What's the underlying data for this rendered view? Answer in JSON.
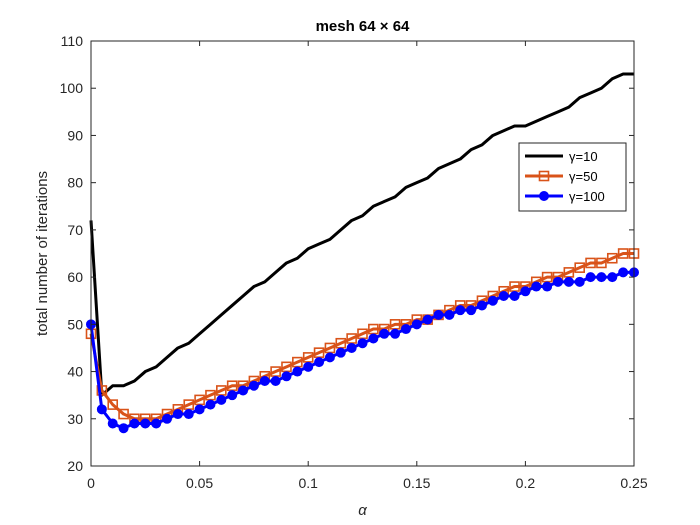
{
  "chart_data": {
    "type": "line",
    "title": "mesh 64 × 64",
    "xlabel": "α",
    "ylabel": "total number of iterations",
    "xlim": [
      0,
      0.25
    ],
    "ylim": [
      20,
      110
    ],
    "xticks": [
      0,
      0.05,
      0.1,
      0.15,
      0.2,
      0.25
    ],
    "xtick_labels": [
      "0",
      "0.05",
      "0.1",
      "0.15",
      "0.2",
      "0.25"
    ],
    "yticks": [
      20,
      30,
      40,
      50,
      60,
      70,
      80,
      90,
      100,
      110
    ],
    "ytick_labels": [
      "20",
      "30",
      "40",
      "50",
      "60",
      "70",
      "80",
      "90",
      "100",
      "110"
    ],
    "grid": false,
    "legend_position": "upper-right",
    "series": [
      {
        "name": "γ=10",
        "color": "#000000",
        "marker": "none",
        "x": [
          0,
          0.005,
          0.01,
          0.015,
          0.02,
          0.025,
          0.03,
          0.035,
          0.04,
          0.045,
          0.05,
          0.055,
          0.06,
          0.065,
          0.07,
          0.075,
          0.08,
          0.085,
          0.09,
          0.095,
          0.1,
          0.105,
          0.11,
          0.115,
          0.12,
          0.125,
          0.13,
          0.135,
          0.14,
          0.145,
          0.15,
          0.155,
          0.16,
          0.165,
          0.17,
          0.175,
          0.18,
          0.185,
          0.19,
          0.195,
          0.2,
          0.205,
          0.21,
          0.215,
          0.22,
          0.225,
          0.23,
          0.235,
          0.24,
          0.245,
          0.25
        ],
        "y": [
          72,
          35,
          37,
          37,
          38,
          40,
          41,
          43,
          45,
          46,
          48,
          50,
          52,
          54,
          56,
          58,
          59,
          61,
          63,
          64,
          66,
          67,
          68,
          70,
          72,
          73,
          75,
          76,
          77,
          79,
          80,
          81,
          83,
          84,
          85,
          87,
          88,
          90,
          91,
          92,
          92,
          93,
          94,
          95,
          96,
          98,
          99,
          100,
          102,
          103,
          103
        ]
      },
      {
        "name": "γ=50",
        "color": "#D95319",
        "marker": "square",
        "x": [
          0,
          0.005,
          0.01,
          0.015,
          0.02,
          0.025,
          0.03,
          0.035,
          0.04,
          0.045,
          0.05,
          0.055,
          0.06,
          0.065,
          0.07,
          0.075,
          0.08,
          0.085,
          0.09,
          0.095,
          0.1,
          0.105,
          0.11,
          0.115,
          0.12,
          0.125,
          0.13,
          0.135,
          0.14,
          0.145,
          0.15,
          0.155,
          0.16,
          0.165,
          0.17,
          0.175,
          0.18,
          0.185,
          0.19,
          0.195,
          0.2,
          0.205,
          0.21,
          0.215,
          0.22,
          0.225,
          0.23,
          0.235,
          0.24,
          0.245,
          0.25
        ],
        "y": [
          48,
          36,
          33,
          31,
          30,
          30,
          30,
          31,
          32,
          33,
          34,
          35,
          36,
          37,
          37,
          38,
          39,
          40,
          41,
          42,
          43,
          44,
          45,
          46,
          47,
          48,
          49,
          49,
          50,
          50,
          51,
          51,
          52,
          53,
          54,
          54,
          55,
          56,
          57,
          58,
          58,
          59,
          60,
          60,
          61,
          62,
          63,
          63,
          64,
          65,
          65
        ]
      },
      {
        "name": "γ=100",
        "color": "#0000FF",
        "marker": "circle",
        "x": [
          0,
          0.005,
          0.01,
          0.015,
          0.02,
          0.025,
          0.03,
          0.035,
          0.04,
          0.045,
          0.05,
          0.055,
          0.06,
          0.065,
          0.07,
          0.075,
          0.08,
          0.085,
          0.09,
          0.095,
          0.1,
          0.105,
          0.11,
          0.115,
          0.12,
          0.125,
          0.13,
          0.135,
          0.14,
          0.145,
          0.15,
          0.155,
          0.16,
          0.165,
          0.17,
          0.175,
          0.18,
          0.185,
          0.19,
          0.195,
          0.2,
          0.205,
          0.21,
          0.215,
          0.22,
          0.225,
          0.23,
          0.235,
          0.24,
          0.245,
          0.25
        ],
        "y": [
          50,
          32,
          29,
          28,
          29,
          29,
          29,
          30,
          31,
          31,
          32,
          33,
          34,
          35,
          36,
          37,
          38,
          38,
          39,
          40,
          41,
          42,
          43,
          44,
          45,
          46,
          47,
          48,
          48,
          49,
          50,
          51,
          52,
          52,
          53,
          53,
          54,
          55,
          56,
          56,
          57,
          58,
          58,
          59,
          59,
          59,
          60,
          60,
          60,
          61,
          61
        ]
      }
    ]
  }
}
